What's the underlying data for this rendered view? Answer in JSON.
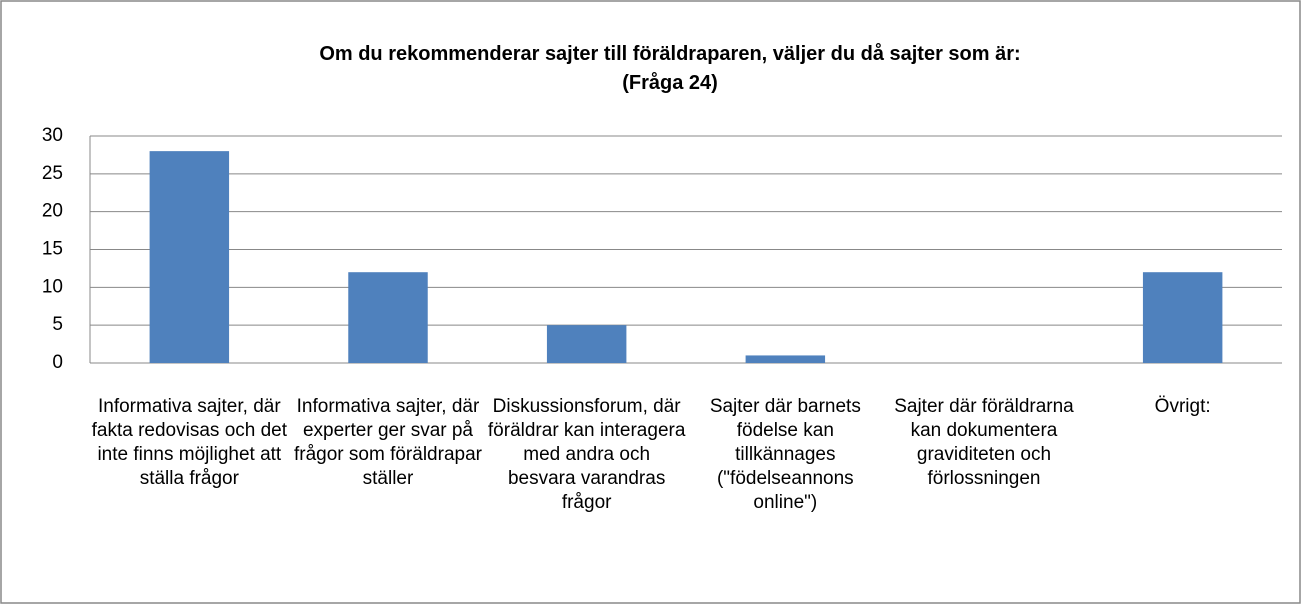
{
  "chart_data": {
    "type": "bar",
    "title": "Om du rekommenderar sajter till föräldraparen, väljer du då sajter som är:\n(Fråga 24)",
    "categories": [
      "Informativa sajter, där fakta redovisas och det inte finns möjlighet att ställa frågor",
      "Informativa sajter, där experter ger svar på frågor som föräldrapar ställer",
      "Diskussionsforum, där föräldrar kan interagera med andra och besvara varandras frågor",
      "Sajter där barnets födelse kan tillkännages (\"födelseannons online\")",
      "Sajter där föräldrarna kan dokumentera graviditeten och förlossningen",
      "Övrigt:"
    ],
    "values": [
      28,
      12,
      5,
      1,
      0,
      12
    ],
    "color": "#4f81bd",
    "ylim": [
      0,
      30
    ],
    "yticks": [
      0,
      5,
      10,
      15,
      20,
      25,
      30
    ],
    "grid": true
  }
}
